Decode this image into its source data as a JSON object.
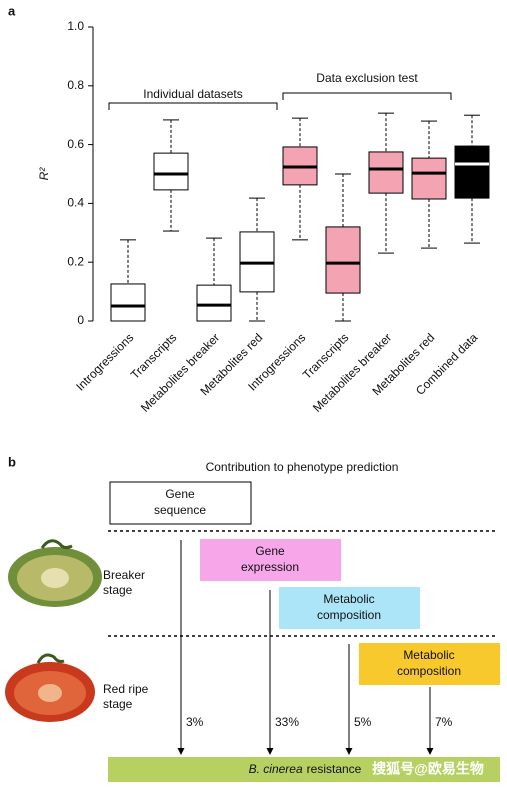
{
  "panel_labels": [
    "a",
    "b"
  ],
  "chart_data": {
    "type": "box",
    "ylabel": "R²",
    "ylim": [
      0,
      1
    ],
    "yticks": [
      0,
      0.2,
      0.4,
      0.6,
      0.8,
      {
        "value": 1,
        "label": "1.0"
      }
    ],
    "categories": [
      "Introgressions",
      "Transcripts",
      "Metabolites breaker",
      "Metabolites red",
      "Introgressions",
      "Transcripts",
      "Metabolites breaker",
      "Metabolites red",
      "Combined data"
    ],
    "boxes": [
      {
        "whislo": 0,
        "q1": 0,
        "med": 0.051,
        "q3": 0.126,
        "whishi": 0.276,
        "color": "#ffffff"
      },
      {
        "whislo": 0.306,
        "q1": 0.446,
        "med": 0.5,
        "q3": 0.571,
        "whishi": 0.684,
        "color": "#ffffff"
      },
      {
        "whislo": 0,
        "q1": 0,
        "med": 0.054,
        "q3": 0.122,
        "whishi": 0.282,
        "color": "#ffffff"
      },
      {
        "whislo": 0,
        "q1": 0.099,
        "med": 0.197,
        "q3": 0.303,
        "whishi": 0.418,
        "color": "#ffffff"
      },
      {
        "whislo": 0.276,
        "q1": 0.463,
        "med": 0.524,
        "q3": 0.592,
        "whishi": 0.69,
        "color": "#f4a3b3"
      },
      {
        "whislo": 0,
        "q1": 0.095,
        "med": 0.197,
        "q3": 0.32,
        "whishi": 0.5,
        "color": "#f4a3b3"
      },
      {
        "whislo": 0.231,
        "q1": 0.435,
        "med": 0.517,
        "q3": 0.575,
        "whishi": 0.707,
        "color": "#f4a3b3"
      },
      {
        "whislo": 0.248,
        "q1": 0.415,
        "med": 0.503,
        "q3": 0.554,
        "whishi": 0.68,
        "color": "#f4a3b3"
      },
      {
        "whislo": 0.265,
        "q1": 0.418,
        "med": 0.534,
        "q3": 0.595,
        "whishi": 0.7,
        "color": "#000000"
      }
    ],
    "annotations": [
      "Individual datasets",
      "Data exclusion test"
    ]
  },
  "diagram": {
    "title": "Contribution to phenotype prediction",
    "boxes": [
      {
        "lines": [
          "Gene",
          "sequence"
        ],
        "color": "#ffffff"
      },
      {
        "lines": [
          "Gene",
          "expression"
        ],
        "color": "#f7a6ea"
      },
      {
        "lines": [
          "Metabolic",
          "composition"
        ],
        "color": "#abe5f7"
      },
      {
        "lines": [
          "Metabolic",
          "composition"
        ],
        "color": "#f8c92c"
      }
    ],
    "stages": [
      {
        "lines": [
          "Breaker",
          "stage"
        ]
      },
      {
        "lines": [
          "Red ripe",
          "stage"
        ]
      }
    ],
    "arrows": [
      "3%",
      "33%",
      "5%",
      "7%"
    ],
    "outcome": {
      "species": "B. cinerea",
      "text": "resistance",
      "color": "#b6d061"
    }
  },
  "watermark": "搜狐号@欧易生物"
}
